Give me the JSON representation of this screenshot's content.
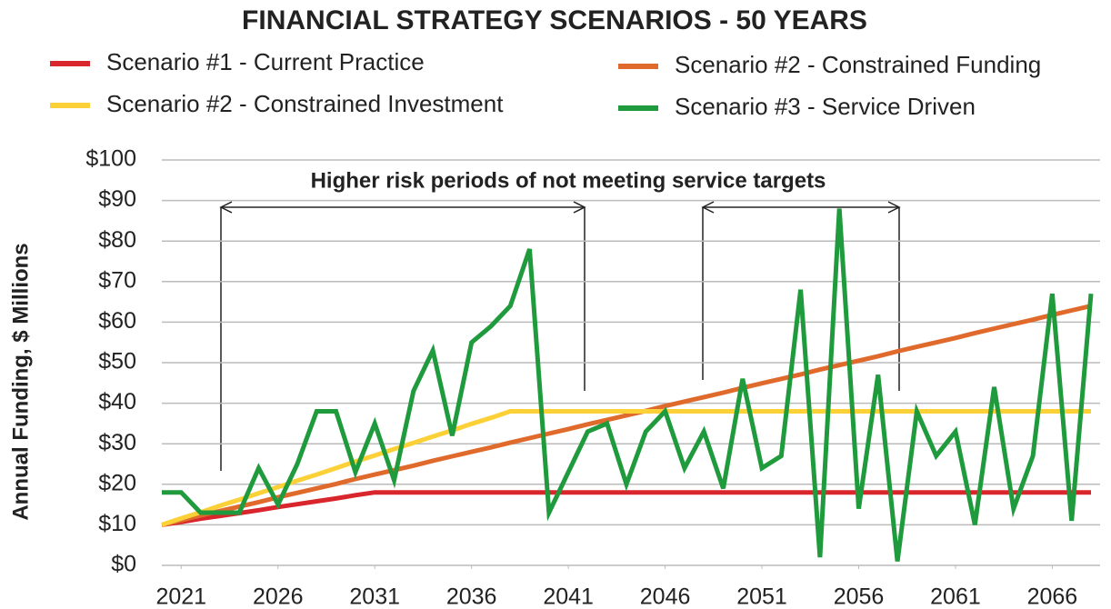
{
  "chart_data": {
    "type": "line",
    "title": "FINANCIAL STRATEGY SCENARIOS - 50 YEARS",
    "y_label": "Annual Funding, $ Millions",
    "annotation": "Higher risk periods of not meeting service targets",
    "x": [
      2020,
      2021,
      2022,
      2023,
      2024,
      2025,
      2026,
      2027,
      2028,
      2029,
      2030,
      2031,
      2032,
      2033,
      2034,
      2035,
      2036,
      2037,
      2038,
      2039,
      2040,
      2041,
      2042,
      2043,
      2044,
      2045,
      2046,
      2047,
      2048,
      2049,
      2050,
      2051,
      2052,
      2053,
      2054,
      2055,
      2056,
      2057,
      2058,
      2059,
      2060,
      2061,
      2062,
      2063,
      2064,
      2065,
      2066,
      2067,
      2068
    ],
    "series": [
      {
        "name": "Scenario #1 - Current Practice",
        "color": "#d9262c",
        "values": [
          10,
          10.7,
          11.5,
          12.2,
          12.9,
          13.6,
          14.4,
          15.1,
          15.8,
          16.5,
          17.3,
          18,
          18,
          18,
          18,
          18,
          18,
          18,
          18,
          18,
          18,
          18,
          18,
          18,
          18,
          18,
          18,
          18,
          18,
          18,
          18,
          18,
          18,
          18,
          18,
          18,
          18,
          18,
          18,
          18,
          18,
          18,
          18,
          18,
          18,
          18,
          18,
          18,
          18
        ]
      },
      {
        "name": "Scenario #2 - Constrained Funding",
        "color": "#e06a2c",
        "values": [
          10,
          11.1,
          12.3,
          13.4,
          14.5,
          15.6,
          16.8,
          17.9,
          19,
          20.1,
          21.3,
          22.4,
          23.5,
          24.6,
          25.8,
          26.9,
          28,
          29.1,
          30.3,
          31.4,
          32.5,
          33.6,
          34.8,
          35.9,
          37,
          38.1,
          39.3,
          40.4,
          41.5,
          42.6,
          43.8,
          44.9,
          46,
          47.1,
          48.3,
          49.4,
          50.5,
          51.6,
          52.8,
          53.9,
          55,
          56.1,
          57.3,
          58.4,
          59.5,
          60.6,
          61.8,
          62.9,
          64
        ]
      },
      {
        "name": "Scenario #2 - Constrained Investment",
        "color": "#fbd137",
        "values": [
          10,
          11.6,
          13.1,
          14.7,
          16.2,
          17.8,
          19.3,
          20.9,
          22.4,
          24,
          25.6,
          27.1,
          28.7,
          30.2,
          31.8,
          33.3,
          34.9,
          36.4,
          38,
          38,
          38,
          38,
          38,
          38,
          38,
          38,
          38,
          38,
          38,
          38,
          38,
          38,
          38,
          38,
          38,
          38,
          38,
          38,
          38,
          38,
          38,
          38,
          38,
          38,
          38,
          38,
          38,
          38,
          38
        ]
      },
      {
        "name": "Scenario #3 - Service Driven",
        "color": "#1f9a3c",
        "values": [
          18,
          18,
          13,
          13,
          13,
          24,
          15,
          25,
          38,
          38,
          23,
          35,
          21,
          43,
          53,
          32,
          55,
          59,
          64,
          78,
          13,
          23,
          33,
          35,
          20,
          33,
          38,
          24,
          33,
          19,
          46,
          24,
          27,
          68,
          2,
          88,
          14,
          47,
          1,
          38,
          27,
          33,
          10,
          44,
          14,
          27,
          67,
          11,
          67
        ]
      }
    ],
    "xlim": [
      2020,
      2068
    ],
    "xticks": [
      2021,
      2026,
      2031,
      2036,
      2041,
      2046,
      2051,
      2056,
      2061,
      2066
    ],
    "ylim": [
      0,
      100
    ],
    "yticks": [
      {
        "value": 0,
        "label": "$0"
      },
      {
        "value": 10,
        "label": "$10"
      },
      {
        "value": 20,
        "label": "$20"
      },
      {
        "value": 30,
        "label": "$30"
      },
      {
        "value": 40,
        "label": "$40"
      },
      {
        "value": 50,
        "label": "$50"
      },
      {
        "value": 60,
        "label": "$60"
      },
      {
        "value": 70,
        "label": "$70"
      },
      {
        "value": 80,
        "label": "$80"
      },
      {
        "value": 90,
        "label": "$90"
      },
      {
        "value": 100,
        "label": "$100"
      }
    ],
    "grid": true
  }
}
